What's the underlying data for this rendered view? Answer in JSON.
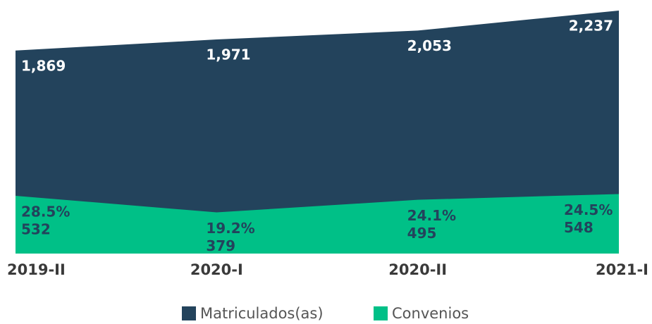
{
  "chart_data": {
    "type": "area",
    "categories": [
      "2019-II",
      "2020-I",
      "2020-II",
      "2021-I"
    ],
    "series": [
      {
        "name": "Matriculados(as)",
        "color": "#23435c",
        "values": [
          1869,
          1971,
          2053,
          2237
        ],
        "value_labels": [
          "1,869",
          "1,971",
          "2,053",
          "2,237"
        ]
      },
      {
        "name": "Convenios",
        "color": "#00c087",
        "values": [
          532,
          379,
          495,
          548
        ],
        "share_labels": [
          "28.5%",
          "19.2%",
          "24.1%",
          "24.5%"
        ]
      }
    ]
  }
}
